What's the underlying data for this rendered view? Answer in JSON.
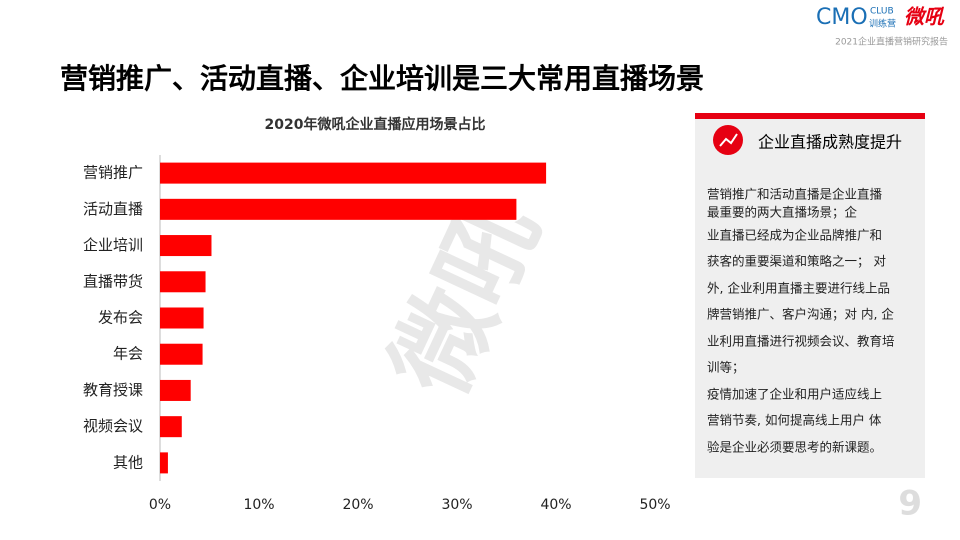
{
  "header": {
    "logo_main": "CMO",
    "logo_club": "CLUB",
    "logo_sub": "训练营",
    "brand": "微吼",
    "report": "2021企业直播营销研究报告"
  },
  "title": "营销推广、活动直播、企业培训是三大常用直播场景",
  "chart_data": {
    "type": "bar",
    "orientation": "horizontal",
    "title": "2020年微吼企业直播应用场景占比",
    "categories": [
      "营销推广",
      "活动直播",
      "企业培训",
      "直播带货",
      "发布会",
      "年会",
      "教育授课",
      "视频会议",
      "其他"
    ],
    "values": [
      39,
      36,
      5.2,
      4.6,
      4.4,
      4.3,
      3.1,
      2.2,
      0.8
    ],
    "color": "#ff0000",
    "xlim": [
      0,
      50
    ],
    "xticks": [
      {
        "value": 0,
        "label": "0%"
      },
      {
        "value": 10,
        "label": "10%"
      },
      {
        "value": 20,
        "label": "20%"
      },
      {
        "value": 30,
        "label": "30%"
      },
      {
        "value": 40,
        "label": "40%"
      },
      {
        "value": 50,
        "label": "50%"
      }
    ],
    "grid": false
  },
  "panel": {
    "heading": "企业直播成熟度提升",
    "lines": [
      "营销推广和活动直播是企业直播",
      "最重要的两大直播场景；企",
      "业直播已经成为企业品牌推广和",
      "获客的重要渠道和策略之一； 对",
      "外, 企业利用直播主要进行线上品",
      "牌营销推广、客户沟通；对 内, 企",
      "业利用直播进行视频会议、教育培",
      "训等；",
      "疫情加速了企业和用户适应线上",
      "营销节奏, 如何提高线上用户 体",
      "验是企业必须要思考的新课题。"
    ]
  },
  "watermark": "微吼",
  "page_number": "9"
}
